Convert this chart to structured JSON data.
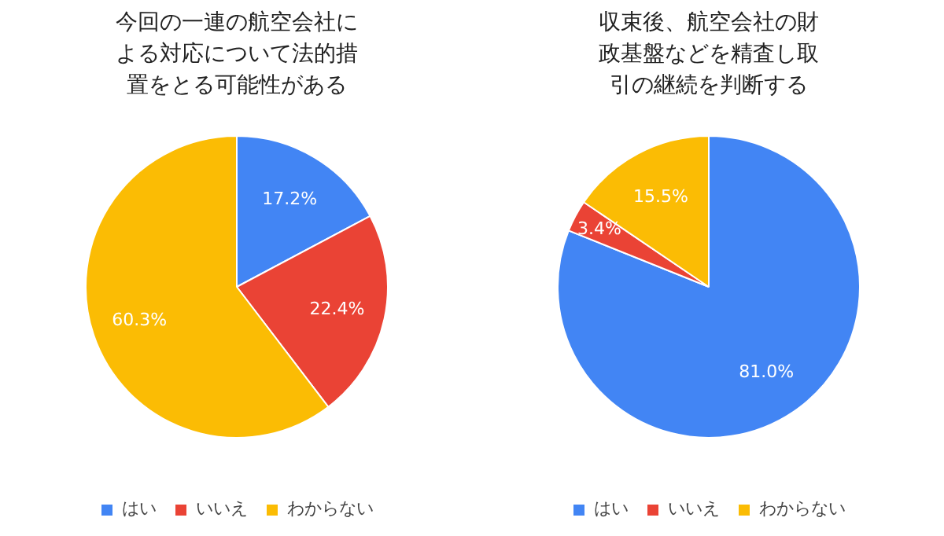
{
  "chart_data": [
    {
      "type": "pie",
      "title": "今回の一連の航空会社による対応について法的措置をとる可能性がある",
      "categories": [
        "はい",
        "いいえ",
        "わからない"
      ],
      "values": [
        17.2,
        22.4,
        60.3
      ],
      "value_labels": [
        "17.2%",
        "22.4%",
        "60.3%"
      ],
      "colors": [
        "#4285f4",
        "#ea4335",
        "#fbbc04"
      ],
      "legend": "bottom"
    },
    {
      "type": "pie",
      "title": "収束後、航空会社の財政基盤などを精査し取引の継続を判断する",
      "categories": [
        "はい",
        "いいえ",
        "わからない"
      ],
      "values": [
        81.0,
        3.4,
        15.5
      ],
      "value_labels": [
        "81.0%",
        "3.4%",
        "15.5%"
      ],
      "colors": [
        "#4285f4",
        "#ea4335",
        "#fbbc04"
      ],
      "legend": "bottom"
    }
  ]
}
